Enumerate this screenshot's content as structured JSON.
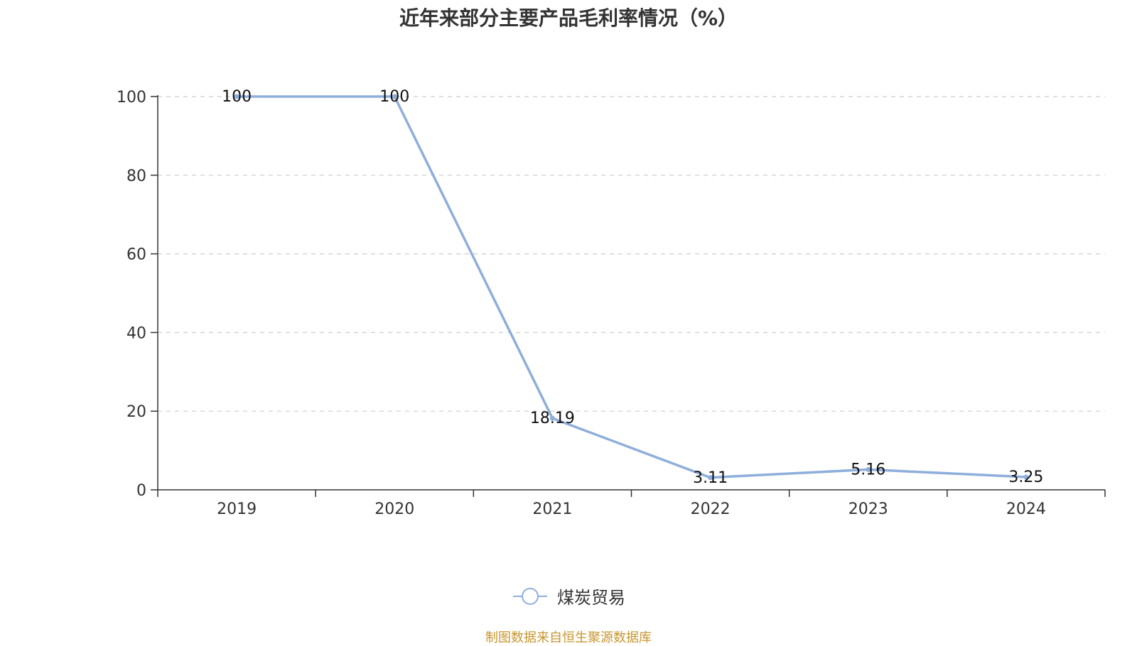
{
  "chart_data": {
    "type": "line",
    "title": "近年来部分主要产品毛利率情况（%）",
    "x": [
      "2019",
      "2020",
      "2021",
      "2022",
      "2023",
      "2024"
    ],
    "series": [
      {
        "name": "煤炭贸易",
        "values": [
          100,
          100,
          18.19,
          3.11,
          5.16,
          3.25
        ],
        "color": "#8eaedb"
      }
    ],
    "data_labels": [
      "100",
      "100",
      "18.19",
      "3.11",
      "5.16",
      "3.25"
    ],
    "y_ticks": [
      "0",
      "20",
      "40",
      "60",
      "80",
      "100"
    ],
    "ylim": [
      0,
      100
    ],
    "grid": "horizontal dashed",
    "legend_position": "bottom-center",
    "source_note": "制图数据来自恒生聚源数据库"
  }
}
